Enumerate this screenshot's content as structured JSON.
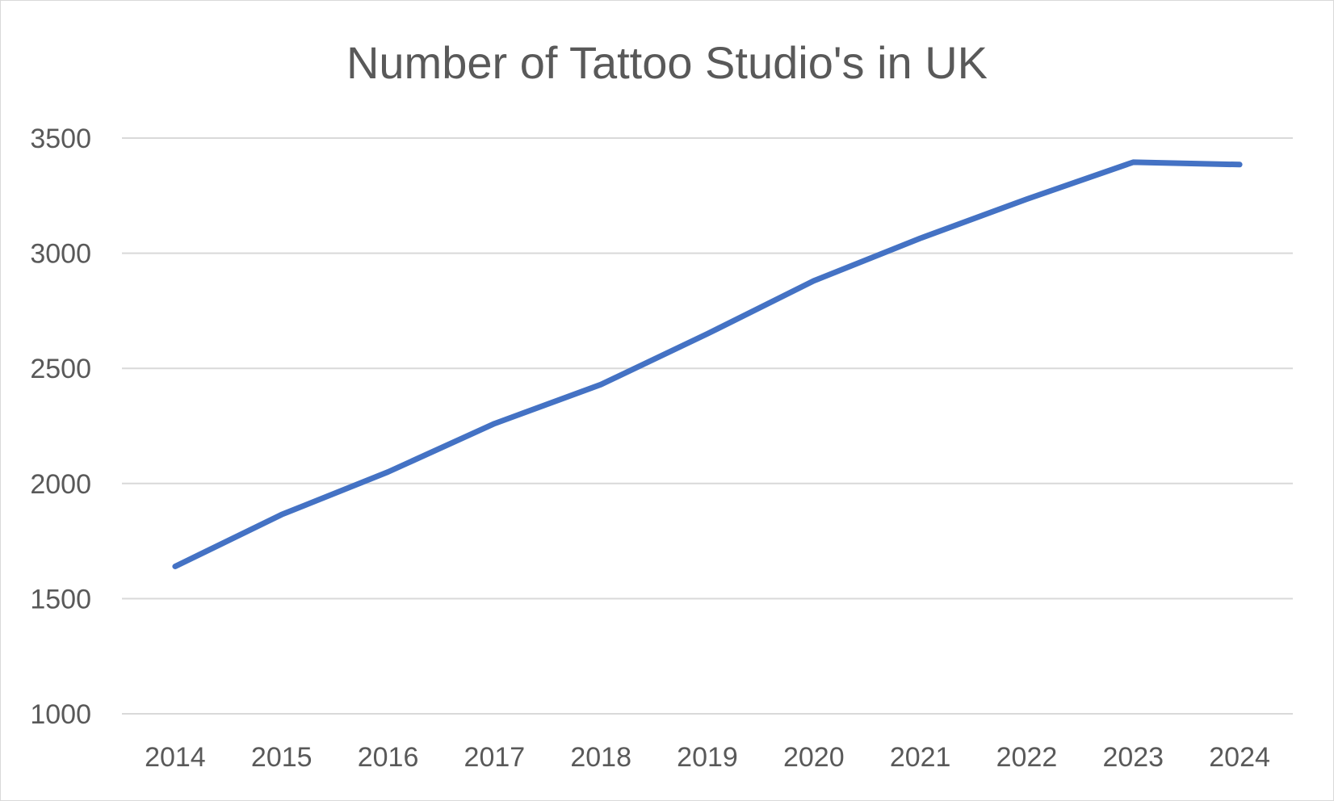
{
  "chart_data": {
    "type": "line",
    "title": "Number of Tattoo Studio's in UK",
    "xlabel": "",
    "ylabel": "",
    "categories": [
      "2014",
      "2015",
      "2016",
      "2017",
      "2018",
      "2019",
      "2020",
      "2021",
      "2022",
      "2023",
      "2024"
    ],
    "series": [
      {
        "values": [
          1640,
          1865,
          2050,
          2260,
          2430,
          2650,
          2880,
          3065,
          3235,
          3395,
          3385
        ]
      }
    ],
    "ylim": [
      1000,
      3500
    ],
    "yticks": [
      "1000",
      "1500",
      "2000",
      "2500",
      "3000",
      "3500"
    ],
    "grid": true,
    "legend": "none",
    "colors": {
      "line": "#4472C4",
      "grid": "#d9d9d9",
      "text": "#595959"
    }
  }
}
